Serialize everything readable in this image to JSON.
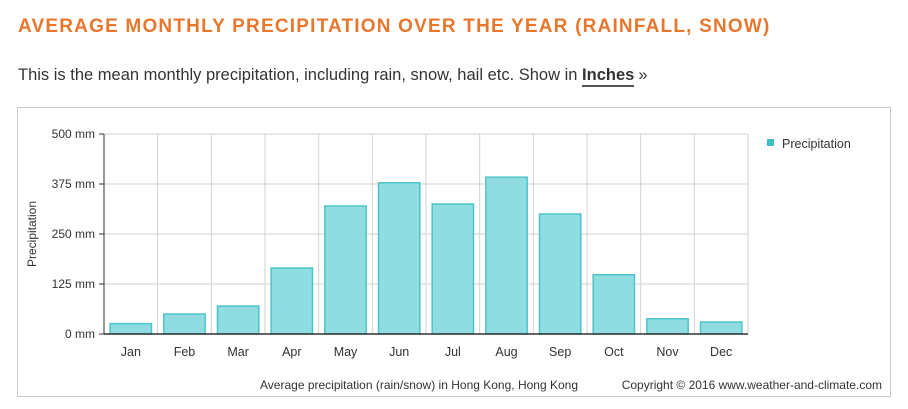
{
  "heading": "AVERAGE MONTHLY PRECIPITATION OVER THE YEAR (RAINFALL, SNOW)",
  "intro": {
    "text": "This is the mean monthly precipitation, including rain, snow, hail etc. Show in",
    "link_label": "Inches",
    "link_suffix": "»"
  },
  "colors": {
    "heading": "#e8772e",
    "bar_fill": "#8fdde0",
    "bar_stroke": "#4cc4c9",
    "legend_marker": "#3cbfc6"
  },
  "chart_data": {
    "type": "bar",
    "categories": [
      "Jan",
      "Feb",
      "Mar",
      "Apr",
      "May",
      "Jun",
      "Jul",
      "Aug",
      "Sep",
      "Oct",
      "Nov",
      "Dec"
    ],
    "series": [
      {
        "name": "Precipitation",
        "values": [
          26,
          50,
          70,
          165,
          320,
          378,
          325,
          392,
          300,
          148,
          38,
          30
        ]
      }
    ],
    "ylim": [
      0,
      500
    ],
    "y_ticks": [
      0,
      125,
      250,
      375,
      500
    ],
    "y_tick_labels": [
      "0 mm",
      "125 mm",
      "250 mm",
      "375 mm",
      "500 mm"
    ],
    "ylabel": "Precipitation",
    "xlabel": "",
    "legend_position": "top-right",
    "grid": true,
    "caption": "Average precipitation (rain/snow) in Hong Kong, Hong Kong",
    "copyright": "Copyright © 2016 www.weather-and-climate.com"
  }
}
